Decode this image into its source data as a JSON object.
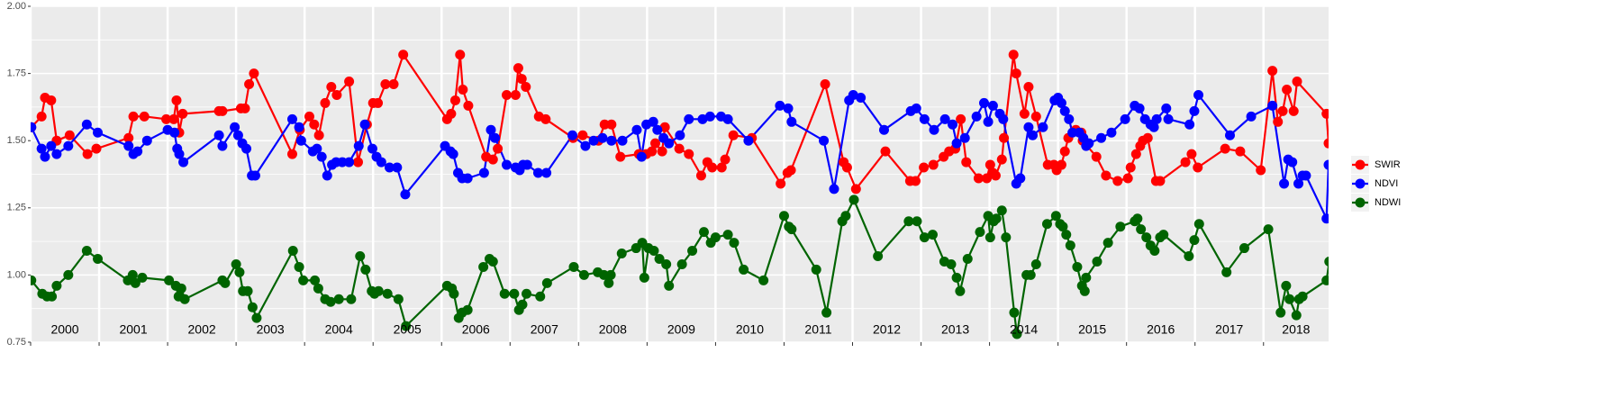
{
  "chart_data": {
    "type": "line",
    "xlim": [
      2000,
      2018.95
    ],
    "ylim": [
      0.75,
      2.0
    ],
    "yticks": [
      0.75,
      {
        "value": 1.0,
        "label": "1.00"
      },
      1.25,
      {
        "value": 1.5,
        "label": "1.50"
      },
      1.75,
      {
        "value": 2.0,
        "label": "2.00"
      }
    ],
    "minor_yticks": [
      0.875,
      1.125,
      1.375,
      1.625,
      1.875
    ],
    "xticks": [
      2000,
      2001,
      2002,
      2003,
      2004,
      2005,
      2006,
      2007,
      2008,
      2009,
      2010,
      2011,
      2012,
      2013,
      2014,
      2015,
      2016,
      2017,
      2018
    ],
    "grid": true,
    "legend": "right",
    "series": [
      {
        "name": "SWIR",
        "color": "#ff0000",
        "x": [
          2000.01,
          2000.16,
          2000.21,
          2000.3,
          2000.38,
          2000.57,
          2000.83,
          2000.96,
          2001.43,
          2001.5,
          2001.66,
          2001.98,
          2002.09,
          2002.13,
          2002.17,
          2002.22,
          2002.75,
          2002.8,
          2003.07,
          2003.13,
          2003.19,
          2003.26,
          2003.82,
          2003.93,
          2004.07,
          2004.14,
          2004.21,
          2004.3,
          2004.39,
          2004.47,
          2004.65,
          2004.78,
          2004.91,
          2005.0,
          2005.07,
          2005.18,
          2005.3,
          2005.44,
          2006.08,
          2006.14,
          2006.2,
          2006.27,
          2006.31,
          2006.39,
          2006.65,
          2006.75,
          2006.82,
          2006.95,
          2007.08,
          2007.12,
          2007.17,
          2007.23,
          2007.42,
          2007.52,
          2007.92,
          2008.06,
          2008.29,
          2008.38,
          2008.48,
          2008.61,
          2008.88,
          2008.99,
          2009.07,
          2009.12,
          2009.22,
          2009.26,
          2009.47,
          2009.61,
          2009.79,
          2009.88,
          2009.95,
          2010.09,
          2010.14,
          2010.26,
          2010.53,
          2010.95,
          2011.05,
          2011.1,
          2011.6,
          2011.87,
          2011.92,
          2012.05,
          2012.48,
          2012.84,
          2012.92,
          2013.04,
          2013.18,
          2013.33,
          2013.41,
          2013.5,
          2013.58,
          2013.66,
          2013.84,
          2013.96,
          2014.01,
          2014.05,
          2014.09,
          2014.18,
          2014.21,
          2014.35,
          2014.39,
          2014.51,
          2014.57,
          2014.68,
          2014.85,
          2014.94,
          2014.98,
          2015.05,
          2015.1,
          2015.15,
          2015.26,
          2015.34,
          2015.36,
          2015.56,
          2015.7,
          2015.87,
          2016.02,
          2016.06,
          2016.14,
          2016.2,
          2016.24,
          2016.31,
          2016.43,
          2016.49,
          2016.86,
          2016.95,
          2017.04,
          2017.44,
          2017.66,
          2017.96,
          2018.13,
          2018.21,
          2018.28,
          2018.34,
          2018.44,
          2018.49,
          2018.92,
          2018.95
        ],
        "values": [
          1.55,
          1.59,
          1.66,
          1.65,
          1.5,
          1.52,
          1.45,
          1.47,
          1.51,
          1.59,
          1.59,
          1.58,
          1.58,
          1.65,
          1.53,
          1.6,
          1.61,
          1.61,
          1.62,
          1.62,
          1.71,
          1.75,
          1.45,
          1.54,
          1.59,
          1.56,
          1.52,
          1.64,
          1.7,
          1.67,
          1.72,
          1.42,
          1.56,
          1.64,
          1.64,
          1.71,
          1.71,
          1.82,
          1.58,
          1.6,
          1.65,
          1.82,
          1.69,
          1.63,
          1.44,
          1.43,
          1.47,
          1.67,
          1.67,
          1.77,
          1.73,
          1.7,
          1.59,
          1.58,
          1.51,
          1.52,
          1.5,
          1.56,
          1.56,
          1.44,
          1.45,
          1.45,
          1.46,
          1.49,
          1.46,
          1.55,
          1.47,
          1.45,
          1.37,
          1.42,
          1.4,
          1.4,
          1.43,
          1.52,
          1.51,
          1.34,
          1.38,
          1.39,
          1.71,
          1.42,
          1.4,
          1.32,
          1.46,
          1.35,
          1.35,
          1.4,
          1.41,
          1.44,
          1.46,
          1.47,
          1.58,
          1.42,
          1.36,
          1.36,
          1.41,
          1.38,
          1.37,
          1.43,
          1.51,
          1.82,
          1.75,
          1.6,
          1.7,
          1.59,
          1.41,
          1.41,
          1.39,
          1.41,
          1.46,
          1.51,
          1.54,
          1.53,
          1.5,
          1.44,
          1.37,
          1.35,
          1.36,
          1.4,
          1.45,
          1.48,
          1.5,
          1.51,
          1.35,
          1.35,
          1.42,
          1.45,
          1.4,
          1.47,
          1.46,
          1.39,
          1.76,
          1.57,
          1.61,
          1.69,
          1.61,
          1.72,
          1.6,
          1.49
        ]
      },
      {
        "name": "NDVI",
        "color": "#0000ff",
        "x": [
          2000.01,
          2000.16,
          2000.21,
          2000.3,
          2000.38,
          2000.55,
          2000.82,
          2000.98,
          2001.43,
          2001.5,
          2001.56,
          2001.7,
          2002.0,
          2002.1,
          2002.14,
          2002.17,
          2002.23,
          2002.75,
          2002.8,
          2002.98,
          2003.03,
          2003.09,
          2003.15,
          2003.23,
          2003.28,
          2003.82,
          2003.92,
          2003.95,
          2004.12,
          2004.18,
          2004.25,
          2004.33,
          2004.4,
          2004.46,
          2004.55,
          2004.65,
          2004.79,
          2004.88,
          2004.99,
          2005.05,
          2005.12,
          2005.24,
          2005.35,
          2005.47,
          2006.05,
          2006.13,
          2006.17,
          2006.24,
          2006.3,
          2006.38,
          2006.62,
          2006.72,
          2006.78,
          2006.95,
          2007.08,
          2007.14,
          2007.19,
          2007.25,
          2007.41,
          2007.53,
          2007.91,
          2008.1,
          2008.22,
          2008.35,
          2008.48,
          2008.64,
          2008.85,
          2008.92,
          2008.99,
          2009.09,
          2009.15,
          2009.24,
          2009.32,
          2009.48,
          2009.61,
          2009.81,
          2009.92,
          2010.08,
          2010.18,
          2010.48,
          2010.94,
          2011.06,
          2011.11,
          2011.58,
          2011.73,
          2011.95,
          2012.01,
          2012.12,
          2012.46,
          2012.85,
          2012.93,
          2013.05,
          2013.19,
          2013.35,
          2013.46,
          2013.52,
          2013.64,
          2013.81,
          2013.92,
          2013.98,
          2014.05,
          2014.15,
          2014.2,
          2014.39,
          2014.45,
          2014.57,
          2014.63,
          2014.78,
          2014.95,
          2015.0,
          2015.05,
          2015.1,
          2015.16,
          2015.21,
          2015.31,
          2015.37,
          2015.41,
          2015.45,
          2015.63,
          2015.78,
          2015.98,
          2016.12,
          2016.19,
          2016.27,
          2016.35,
          2016.4,
          2016.44,
          2016.58,
          2016.61,
          2016.92,
          2016.99,
          2017.05,
          2017.51,
          2017.82,
          2018.13,
          2018.3,
          2018.36,
          2018.42,
          2018.51,
          2018.57,
          2018.62,
          2018.92,
          2018.95
        ],
        "values": [
          1.55,
          1.47,
          1.44,
          1.48,
          1.45,
          1.48,
          1.56,
          1.53,
          1.48,
          1.45,
          1.46,
          1.5,
          1.54,
          1.53,
          1.47,
          1.45,
          1.42,
          1.52,
          1.48,
          1.55,
          1.52,
          1.49,
          1.47,
          1.37,
          1.37,
          1.58,
          1.55,
          1.5,
          1.46,
          1.47,
          1.44,
          1.37,
          1.41,
          1.42,
          1.42,
          1.42,
          1.48,
          1.56,
          1.47,
          1.44,
          1.42,
          1.4,
          1.4,
          1.3,
          1.48,
          1.46,
          1.45,
          1.38,
          1.36,
          1.36,
          1.38,
          1.54,
          1.51,
          1.41,
          1.4,
          1.39,
          1.41,
          1.41,
          1.38,
          1.38,
          1.52,
          1.48,
          1.5,
          1.51,
          1.5,
          1.5,
          1.54,
          1.44,
          1.56,
          1.57,
          1.54,
          1.51,
          1.49,
          1.52,
          1.58,
          1.58,
          1.59,
          1.59,
          1.58,
          1.5,
          1.63,
          1.62,
          1.57,
          1.5,
          1.32,
          1.65,
          1.67,
          1.66,
          1.54,
          1.61,
          1.62,
          1.58,
          1.54,
          1.58,
          1.56,
          1.49,
          1.51,
          1.59,
          1.64,
          1.57,
          1.63,
          1.6,
          1.58,
          1.34,
          1.36,
          1.55,
          1.52,
          1.55,
          1.65,
          1.66,
          1.64,
          1.61,
          1.58,
          1.53,
          1.53,
          1.51,
          1.48,
          1.49,
          1.51,
          1.53,
          1.58,
          1.63,
          1.62,
          1.58,
          1.56,
          1.55,
          1.58,
          1.62,
          1.58,
          1.56,
          1.61,
          1.67,
          1.52,
          1.59,
          1.63,
          1.34,
          1.43,
          1.42,
          1.34,
          1.37,
          1.37,
          1.21,
          1.41
        ]
      },
      {
        "name": "NDWI",
        "color": "#006400",
        "x": [
          2000.01,
          2000.17,
          2000.24,
          2000.31,
          2000.38,
          2000.55,
          2000.82,
          2000.98,
          2001.42,
          2001.49,
          2001.53,
          2001.63,
          2002.02,
          2002.12,
          2002.16,
          2002.2,
          2002.25,
          2002.8,
          2002.84,
          2003.0,
          2003.05,
          2003.1,
          2003.17,
          2003.24,
          2003.3,
          2003.83,
          2003.92,
          2003.98,
          2004.15,
          2004.2,
          2004.3,
          2004.38,
          2004.5,
          2004.68,
          2004.81,
          2004.89,
          2004.98,
          2005.02,
          2005.08,
          2005.21,
          2005.37,
          2005.48,
          2006.08,
          2006.15,
          2006.18,
          2006.25,
          2006.3,
          2006.38,
          2006.61,
          2006.7,
          2006.75,
          2006.92,
          2007.06,
          2007.13,
          2007.18,
          2007.24,
          2007.44,
          2007.54,
          2007.93,
          2008.08,
          2008.28,
          2008.37,
          2008.44,
          2008.47,
          2008.63,
          2008.84,
          2008.93,
          2008.96,
          2009.02,
          2009.1,
          2009.18,
          2009.28,
          2009.32,
          2009.51,
          2009.66,
          2009.83,
          2009.93,
          2010.0,
          2010.18,
          2010.27,
          2010.41,
          2010.7,
          2011.0,
          2011.07,
          2011.11,
          2011.47,
          2011.62,
          2011.85,
          2011.9,
          2012.02,
          2012.37,
          2012.82,
          2012.94,
          2013.05,
          2013.17,
          2013.34,
          2013.44,
          2013.52,
          2013.57,
          2013.68,
          2013.86,
          2013.98,
          2014.01,
          2014.06,
          2014.1,
          2014.18,
          2014.24,
          2014.36,
          2014.4,
          2014.54,
          2014.6,
          2014.68,
          2014.84,
          2014.97,
          2015.03,
          2015.07,
          2015.12,
          2015.18,
          2015.28,
          2015.35,
          2015.39,
          2015.41,
          2015.57,
          2015.73,
          2015.91,
          2016.12,
          2016.16,
          2016.21,
          2016.29,
          2016.35,
          2016.41,
          2016.49,
          2016.54,
          2016.91,
          2016.99,
          2017.06,
          2017.46,
          2017.72,
          2018.07,
          2018.25,
          2018.33,
          2018.38,
          2018.48,
          2018.52,
          2018.57,
          2018.92,
          2018.96
        ],
        "values": [
          0.98,
          0.93,
          0.92,
          0.92,
          0.96,
          1.0,
          1.09,
          1.06,
          0.98,
          1.0,
          0.97,
          0.99,
          0.98,
          0.96,
          0.92,
          0.95,
          0.91,
          0.98,
          0.97,
          1.04,
          1.01,
          0.94,
          0.94,
          0.88,
          0.84,
          1.09,
          1.03,
          0.98,
          0.98,
          0.95,
          0.91,
          0.9,
          0.91,
          0.91,
          1.07,
          1.02,
          0.94,
          0.93,
          0.94,
          0.93,
          0.91,
          0.81,
          0.96,
          0.95,
          0.93,
          0.84,
          0.86,
          0.87,
          1.03,
          1.06,
          1.05,
          0.93,
          0.93,
          0.87,
          0.89,
          0.93,
          0.92,
          0.97,
          1.03,
          1.0,
          1.01,
          1.0,
          0.97,
          1.0,
          1.08,
          1.1,
          1.12,
          0.99,
          1.1,
          1.09,
          1.06,
          1.04,
          0.96,
          1.04,
          1.09,
          1.16,
          1.12,
          1.14,
          1.15,
          1.12,
          1.02,
          0.98,
          1.22,
          1.18,
          1.17,
          1.02,
          0.86,
          1.2,
          1.22,
          1.28,
          1.07,
          1.2,
          1.2,
          1.14,
          1.15,
          1.05,
          1.04,
          0.99,
          0.94,
          1.06,
          1.16,
          1.22,
          1.14,
          1.2,
          1.21,
          1.24,
          1.14,
          0.86,
          0.78,
          1.0,
          1.0,
          1.04,
          1.19,
          1.22,
          1.19,
          1.18,
          1.15,
          1.11,
          1.03,
          0.96,
          0.94,
          0.99,
          1.05,
          1.12,
          1.18,
          1.2,
          1.21,
          1.17,
          1.14,
          1.11,
          1.09,
          1.14,
          1.15,
          1.07,
          1.13,
          1.19,
          1.01,
          1.1,
          1.17,
          0.86,
          0.96,
          0.91,
          0.85,
          0.91,
          0.92,
          0.98,
          1.05
        ]
      }
    ]
  }
}
